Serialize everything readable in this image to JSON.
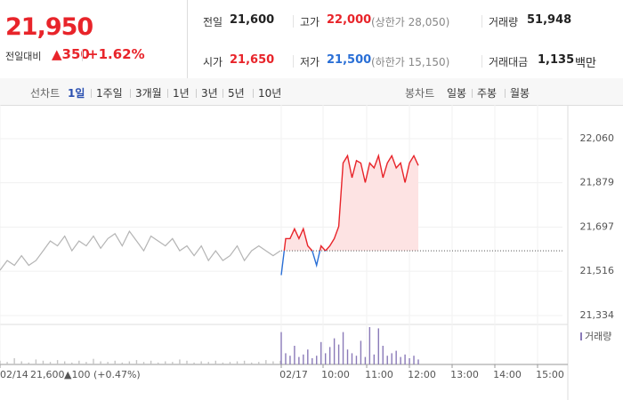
{
  "header": {
    "price": "21,950",
    "change_label": "전일대비",
    "change": "▲350",
    "change_pct": "+1.62%"
  },
  "stats": [
    {
      "label": "전일",
      "value": "21,600"
    },
    {
      "label": "고가",
      "value": "22,000",
      "note": "(상한가 28,050)"
    },
    {
      "label": "거래량",
      "value": "51,948"
    },
    {
      "label": "시가",
      "value": "21,650"
    },
    {
      "label": "저가",
      "value": "21,500",
      "note": "(하한가 15,150)"
    },
    {
      "label": "거래대금",
      "value": "1,135",
      "unit": "백만"
    }
  ],
  "tabs": {
    "line_label": "선차트",
    "line_tabs": [
      "1일",
      "1주일",
      "3개월",
      "1년",
      "3년",
      "5년",
      "10년"
    ],
    "candle_label": "봉차트",
    "candle_tabs": [
      "일봉",
      "주봉",
      "월봉"
    ]
  },
  "chart_data": {
    "type": "line",
    "ylim": [
      21334,
      22060
    ],
    "yticks": [
      {
        "value": 21334,
        "label": "21,334"
      },
      {
        "value": 21516,
        "label": "21,516"
      },
      {
        "value": 21697,
        "label": "21,697"
      },
      {
        "value": 21879,
        "label": "21,879"
      },
      {
        "value": 22060,
        "label": "22,060"
      }
    ],
    "baseline": 21600,
    "x_labels": [
      "02/14",
      "02/17",
      "10:00",
      "11:00",
      "12:00",
      "13:00",
      "14:00",
      "15:00"
    ],
    "prev_close_label": "21,600",
    "prev_change_label": "▲100 (+0.47%)",
    "volume_legend": "거래량",
    "prev_day": {
      "color": "#b4b4b4",
      "values": [
        21520,
        21560,
        21540,
        21580,
        21540,
        21560,
        21600,
        21640,
        21620,
        21660,
        21600,
        21640,
        21620,
        21660,
        21610,
        21650,
        21670,
        21620,
        21680,
        21640,
        21600,
        21660,
        21640,
        21620,
        21650,
        21600,
        21620,
        21580,
        21620,
        21560,
        21600,
        21560,
        21580,
        21620,
        21560,
        21600,
        21620,
        21600,
        21580,
        21600
      ]
    },
    "today": {
      "color": "#e8242a",
      "down_color": "#2a6fd6",
      "values": [
        21500,
        21650,
        21650,
        21690,
        21650,
        21690,
        21620,
        21600,
        21540,
        21620,
        21600,
        21620,
        21650,
        21700,
        21960,
        21990,
        21900,
        21970,
        21960,
        21880,
        21960,
        21940,
        21990,
        21900,
        21960,
        21990,
        21940,
        21960,
        21880,
        21960,
        21990,
        21950
      ]
    },
    "volume_prev": {
      "color": "#c4c4c4",
      "values": [
        300,
        200,
        500,
        250,
        150,
        400,
        300,
        200,
        350,
        250,
        150,
        300,
        200,
        450,
        250,
        200,
        300,
        150,
        250,
        350,
        200,
        300,
        150,
        250,
        200,
        400,
        300,
        150,
        250,
        200,
        300,
        150,
        200,
        250,
        300,
        150,
        200,
        350,
        250,
        300
      ]
    },
    "volume_today": {
      "color": "#8a7ab8",
      "values": [
        2600,
        900,
        700,
        1500,
        600,
        800,
        1200,
        500,
        700,
        1800,
        900,
        1400,
        2100,
        1600,
        2600,
        1200,
        900,
        700,
        1900,
        600,
        3000,
        800,
        2900,
        1500,
        700,
        900,
        1100,
        600,
        800,
        500,
        700,
        400
      ]
    }
  }
}
